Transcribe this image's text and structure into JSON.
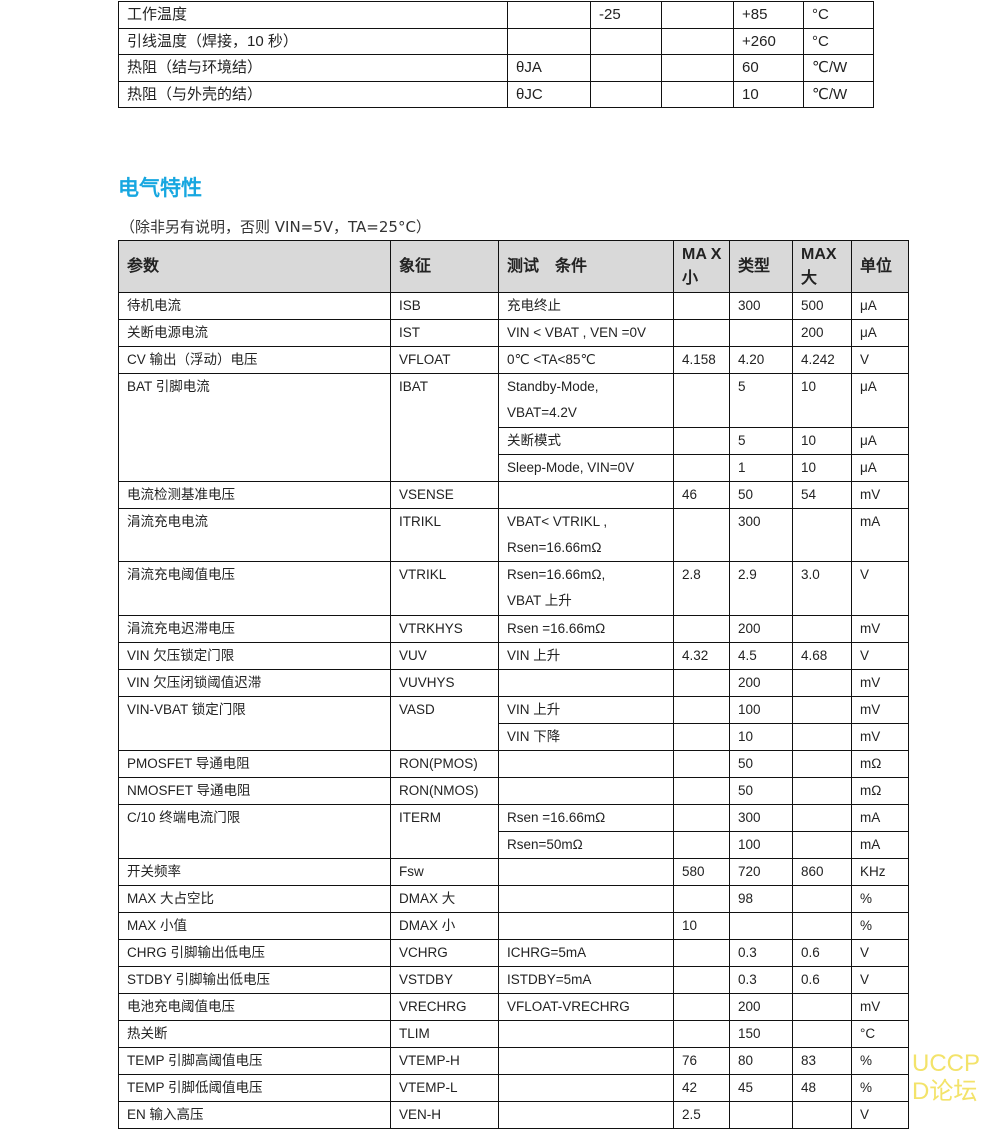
{
  "abs_table": {
    "rows": [
      [
        "工作温度",
        "",
        "-25",
        "",
        "+85",
        "°C"
      ],
      [
        "引线温度（焊接，10 秒）",
        "",
        "",
        "",
        "+260",
        "°C"
      ],
      [
        "热阻（结与环境结）",
        "θJA",
        "",
        "",
        "60",
        "℃/W"
      ],
      [
        "热阻（与外壳的结）",
        "θJC",
        "",
        "",
        "10",
        "℃/W"
      ]
    ]
  },
  "section": {
    "title": "电气特性",
    "subtitle": "（除非另有说明，否则 VIN=5V，TA=25°C）"
  },
  "elec_table": {
    "headers": [
      "参数",
      "象征",
      "测试　条件",
      "MA X 小",
      "类型",
      "MAX 大",
      "单位"
    ],
    "rows": [
      {
        "param": "待机电流",
        "symbol": "ISB",
        "conds": [
          {
            "cond": "充电终止",
            "min": "",
            "typ": "300",
            "max": "500",
            "unit": "μA"
          }
        ]
      },
      {
        "param": "关断电源电流",
        "symbol": "IST",
        "conds": [
          {
            "cond": "VIN < VBAT , VEN =0V",
            "min": "",
            "typ": "",
            "max": "200",
            "unit": "μA"
          }
        ]
      },
      {
        "param": "CV 输出（浮动）电压",
        "symbol": "VFLOAT",
        "conds": [
          {
            "cond": "0℃ <TA<85℃",
            "min": "4.158",
            "typ": "4.20",
            "max": "4.242",
            "unit": "V"
          }
        ]
      },
      {
        "param": "BAT 引脚电流",
        "symbol": "IBAT",
        "conds": [
          {
            "cond": "Standby-Mode, VBAT=4.2V",
            "min": "",
            "typ": "5",
            "max": "10",
            "unit": "μA",
            "lines": 2
          },
          {
            "cond": "关断模式",
            "min": "",
            "typ": "5",
            "max": "10",
            "unit": "μA"
          },
          {
            "cond": "Sleep-Mode, VIN=0V",
            "min": "",
            "typ": "1",
            "max": "10",
            "unit": "μA"
          }
        ]
      },
      {
        "param": "电流检测基准电压",
        "symbol": "VSENSE",
        "conds": [
          {
            "cond": "",
            "min": "46",
            "typ": "50",
            "max": "54",
            "unit": "mV"
          }
        ]
      },
      {
        "param": "涓流充电电流",
        "symbol": "ITRIKL",
        "conds": [
          {
            "cond": "VBAT< VTRIKL , Rsen=16.66mΩ",
            "min": "",
            "typ": "300",
            "max": "",
            "unit": "mA",
            "lines": 2
          }
        ]
      },
      {
        "param": "涓流充电阈值电压",
        "symbol": "VTRIKL",
        "conds": [
          {
            "cond": "Rsen=16.66mΩ, VBAT 上升",
            "min": "2.8",
            "typ": "2.9",
            "max": "3.0",
            "unit": "V",
            "lines": 2
          }
        ]
      },
      {
        "param": "涓流充电迟滞电压",
        "symbol": "VTRKHYS",
        "conds": [
          {
            "cond": "Rsen =16.66mΩ",
            "min": "",
            "typ": "200",
            "max": "",
            "unit": "mV"
          }
        ]
      },
      {
        "param": "VIN  欠压锁定门限",
        "symbol": "VUV",
        "conds": [
          {
            "cond": "VIN 上升",
            "min": "4.32",
            "typ": "4.5",
            "max": "4.68",
            "unit": "V"
          }
        ]
      },
      {
        "param": "VIN 欠压闭锁阈值迟滞",
        "symbol": "VUVHYS",
        "conds": [
          {
            "cond": "",
            "min": "",
            "typ": "200",
            "max": "",
            "unit": "mV"
          }
        ]
      },
      {
        "param": "VIN-VBAT  锁定门限",
        "symbol": "VASD",
        "conds": [
          {
            "cond": "VIN 上升",
            "min": "",
            "typ": "100",
            "max": "",
            "unit": "mV"
          },
          {
            "cond": "VIN 下降",
            "min": "",
            "typ": "10",
            "max": "",
            "unit": "mV"
          }
        ]
      },
      {
        "param": "PMOSFET 导通电阻",
        "symbol": "RON(PMOS)",
        "conds": [
          {
            "cond": "",
            "min": "",
            "typ": "50",
            "max": "",
            "unit": "mΩ"
          }
        ]
      },
      {
        "param": "NMOSFET  导通电阻",
        "symbol": "RON(NMOS)",
        "conds": [
          {
            "cond": "",
            "min": "",
            "typ": "50",
            "max": "",
            "unit": "mΩ"
          }
        ]
      },
      {
        "param": "C/10  终端电流门限",
        "symbol": "ITERM",
        "conds": [
          {
            "cond": "Rsen =16.66mΩ",
            "min": "",
            "typ": "300",
            "max": "",
            "unit": "mA"
          },
          {
            "cond": "Rsen=50mΩ",
            "min": "",
            "typ": "100",
            "max": "",
            "unit": "mA"
          }
        ]
      },
      {
        "param": "开关频率",
        "symbol": "Fsw",
        "conds": [
          {
            "cond": "",
            "min": "580",
            "typ": "720",
            "max": "860",
            "unit": "KHz"
          }
        ]
      },
      {
        "param": "MAX 大占空比",
        "symbol": "DMAX 大",
        "conds": [
          {
            "cond": "",
            "min": "",
            "typ": "98",
            "max": "",
            "unit": "%"
          }
        ]
      },
      {
        "param": "MAX 小值",
        "symbol": "DMAX 小",
        "conds": [
          {
            "cond": "",
            "min": "10",
            "typ": "",
            "max": "",
            "unit": "%"
          }
        ]
      },
      {
        "param": "CHRG  引脚输出低电压",
        "symbol": "VCHRG",
        "conds": [
          {
            "cond": "ICHRG=5mA",
            "min": "",
            "typ": "0.3",
            "max": "0.6",
            "unit": "V"
          }
        ]
      },
      {
        "param": "STDBY 引脚输出低电压",
        "symbol": "VSTDBY",
        "conds": [
          {
            "cond": "ISTDBY=5mA",
            "min": "",
            "typ": "0.3",
            "max": "0.6",
            "unit": "V"
          }
        ]
      },
      {
        "param": "电池充电阈值电压",
        "symbol": "VRECHRG",
        "conds": [
          {
            "cond": "VFLOAT-VRECHRG",
            "min": "",
            "typ": "200",
            "max": "",
            "unit": "mV"
          }
        ]
      },
      {
        "param": "热关断",
        "symbol": "TLIM",
        "conds": [
          {
            "cond": "",
            "min": "",
            "typ": "150",
            "max": "",
            "unit": "°C"
          }
        ]
      },
      {
        "param": "TEMP  引脚高阈值电压",
        "symbol": "VTEMP-H",
        "conds": [
          {
            "cond": "",
            "min": "76",
            "typ": "80",
            "max": "83",
            "unit": "%"
          }
        ]
      },
      {
        "param": "TEMP  引脚低阈值电压",
        "symbol": "VTEMP-L",
        "conds": [
          {
            "cond": "",
            "min": "42",
            "typ": "45",
            "max": "48",
            "unit": "%"
          }
        ]
      },
      {
        "param": "EN  输入高压",
        "symbol": "VEN-H",
        "conds": [
          {
            "cond": "",
            "min": "2.5",
            "typ": "",
            "max": "",
            "unit": "V"
          }
        ]
      }
    ]
  },
  "watermark": "UCCPD论坛"
}
